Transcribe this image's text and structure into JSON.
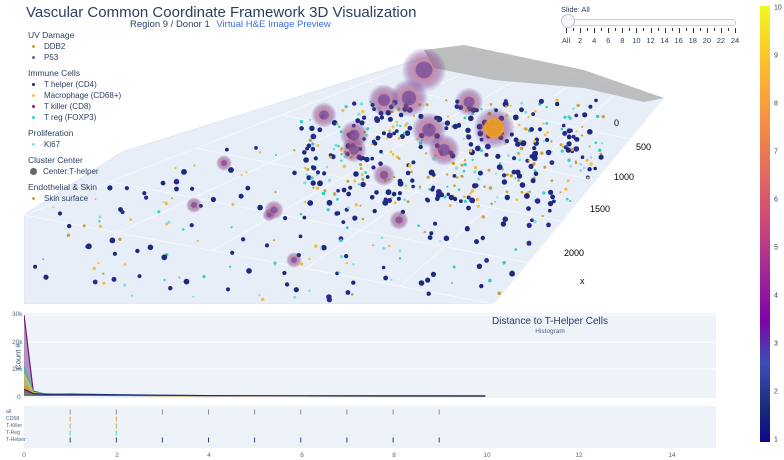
{
  "header": {
    "title": "Vascular Common Coordinate Framework 3D Visualization",
    "subtitle": "Region 9 / Donor 1",
    "link": "Virtual H&E Image Preview"
  },
  "legend": {
    "groups": [
      {
        "title": "UV Damage",
        "items": [
          {
            "label": "DDB2",
            "color": "#c9a33a"
          },
          {
            "label": "P53",
            "color": "#7a5aa0"
          }
        ]
      },
      {
        "title": "Immune Cells",
        "items": [
          {
            "label": "T helper (CD4)",
            "color": "#1b2a7c"
          },
          {
            "label": "Macrophage (CD68+)",
            "color": "#f0c040"
          },
          {
            "label": "T killer (CD8)",
            "color": "#9b1b6e"
          },
          {
            "label": "T reg (FOXP3)",
            "color": "#32d0c0"
          }
        ]
      },
      {
        "title": "Proliferation",
        "items": [
          {
            "label": "Ki67",
            "color": "#7fe0e8"
          }
        ]
      },
      {
        "title": "Cluster Center",
        "items": [
          {
            "label": "Center:T-helper",
            "color": "#666666",
            "big": true
          }
        ]
      },
      {
        "title": "Endothelial & Skin",
        "items": [
          {
            "label": "Skin surface",
            "color": "#c9a33a"
          }
        ]
      }
    ]
  },
  "slider": {
    "label": "Slide: All",
    "ticks": [
      "All",
      "2",
      "4",
      "6",
      "8",
      "10",
      "12",
      "14",
      "16",
      "18",
      "20",
      "22",
      "24"
    ]
  },
  "colorbar": {
    "ticks": [
      "1",
      "2",
      "3",
      "4",
      "5",
      "6",
      "7",
      "8",
      "9",
      "10"
    ],
    "colors": [
      "#0d0887",
      "#46039f",
      "#7201a8",
      "#9c179e",
      "#bd3786",
      "#d8576b",
      "#ed7953",
      "#fb9f3a",
      "#fdca26",
      "#f0f921"
    ]
  },
  "scene": {
    "x_axis_title": "x",
    "x_ticks": [
      "0",
      "500",
      "1000",
      "1500",
      "2000"
    ]
  },
  "histogram": {
    "title": "Distance to T-Helper Cells",
    "subtitle": "Histogram",
    "ylabel": "Count #",
    "y_ticks": [
      "30k",
      "20k",
      "10k",
      "0"
    ],
    "x_ticks": [
      "0",
      "2",
      "4",
      "6",
      "8",
      "10",
      "12",
      "14"
    ],
    "rug_labels": [
      "all",
      "CD68",
      "T-Killer",
      "T-Reg",
      "T-Helper"
    ]
  },
  "chart_data": [
    {
      "type": "scatter",
      "title": "",
      "xlabel": "x",
      "x_ticks": [
        0,
        500,
        1000,
        1500,
        2000
      ],
      "series_names": [
        "DDB2",
        "P53",
        "T helper (CD4)",
        "Macrophage (CD68+)",
        "T killer (CD8)",
        "T reg (FOXP3)",
        "Ki67",
        "Center:T-helper",
        "Skin surface"
      ],
      "colorscale": "plasma",
      "color_range": [
        1,
        10
      ]
    },
    {
      "type": "area",
      "title": "Distance to T-Helper Cells",
      "subtitle": "Histogram",
      "ylabel": "Count #",
      "xlim": [
        0,
        15
      ],
      "ylim": [
        0,
        30000
      ],
      "series": [
        {
          "name": "T-Helper",
          "color": "#6a1b7a",
          "x": [
            0,
            0.2,
            0.5,
            1,
            2,
            3,
            4,
            5,
            6,
            8,
            10
          ],
          "values": [
            30000,
            1800,
            500,
            350,
            250,
            150,
            80,
            40,
            20,
            10,
            0
          ]
        },
        {
          "name": "T-Reg",
          "color": "#2fbfa0",
          "x": [
            0,
            0.2,
            0.5,
            1,
            2,
            3,
            4,
            6,
            8,
            10
          ],
          "values": [
            11000,
            1500,
            600,
            300,
            200,
            100,
            50,
            20,
            10,
            0
          ]
        },
        {
          "name": "T-Killer",
          "color": "#f0c040",
          "x": [
            0,
            0.2,
            0.5,
            1,
            2,
            3,
            4,
            6,
            8,
            10
          ],
          "values": [
            8000,
            1200,
            700,
            400,
            250,
            150,
            80,
            30,
            10,
            0
          ]
        },
        {
          "name": "CD68",
          "color": "#e8902a",
          "x": [
            0,
            0.2,
            0.5,
            1,
            2,
            3,
            4,
            6,
            8,
            10
          ],
          "values": [
            4000,
            1000,
            800,
            450,
            300,
            180,
            100,
            40,
            10,
            0
          ]
        },
        {
          "name": "all",
          "color": "#1b2a7c",
          "x": [
            0,
            0.2,
            0.5,
            1,
            2,
            3,
            4,
            6,
            8,
            10
          ],
          "values": [
            2500,
            900,
            600,
            700,
            500,
            300,
            150,
            60,
            20,
            0
          ]
        }
      ],
      "rug_points": [
        1,
        2,
        3,
        4,
        5,
        6,
        7,
        8,
        9
      ]
    }
  ]
}
